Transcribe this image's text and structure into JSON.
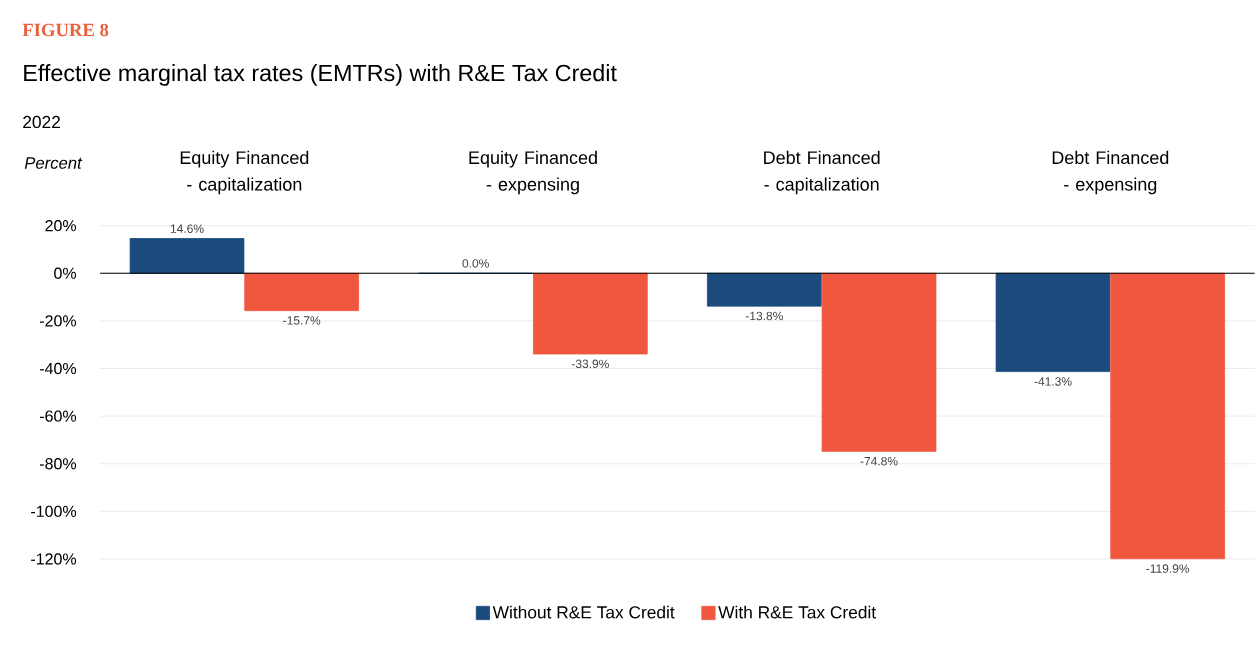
{
  "chart_data": {
    "type": "bar",
    "title": "Effective marginal tax rates (EMTRs) with R&E Tax Credit",
    "subtitle": "2022",
    "ylabel": "Percent",
    "annotations": [
      "FIGURE 8"
    ],
    "categories": [
      "Equity Financed - capitalization",
      "Equity Financed - expensing",
      "Debt Financed - capitalization",
      "Debt Financed - expensing"
    ],
    "series": [
      {
        "name": "Without R&E Tax Credit",
        "color": "#1b4a7c",
        "values": [
          14.6,
          0.0,
          -13.8,
          -41.3
        ],
        "value_labels": [
          "14.6%",
          "0.0%",
          "-13.8%",
          "-41.3%"
        ]
      },
      {
        "name": "With R&E Tax Credit",
        "color": "#f0573f",
        "values": [
          -15.7,
          -33.9,
          -74.8,
          -119.9
        ],
        "value_labels": [
          "-15.7%",
          "-33.9%",
          "-74.8%",
          "-119.9%"
        ]
      }
    ],
    "ylim": [
      -120,
      20
    ],
    "yticks": [
      {
        "value": 20,
        "label": "20%"
      },
      {
        "value": 0,
        "label": "0%"
      },
      {
        "value": -20,
        "label": "-20%"
      },
      {
        "value": -40,
        "label": "-40%"
      },
      {
        "value": -60,
        "label": "-60%"
      },
      {
        "value": -80,
        "label": "-80%"
      },
      {
        "value": -100,
        "label": "-100%"
      },
      {
        "value": -120,
        "label": "-120%"
      }
    ],
    "grid": "y",
    "legend": "bottom"
  }
}
